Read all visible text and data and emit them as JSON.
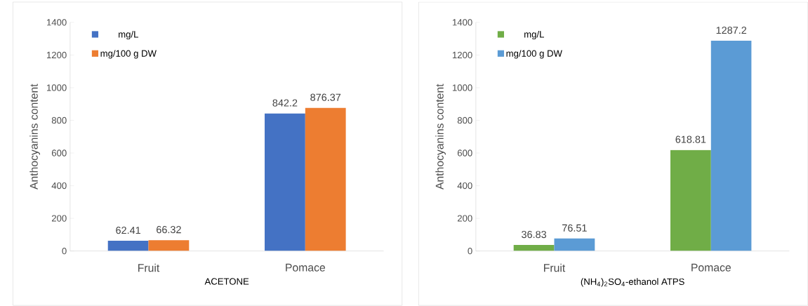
{
  "chart_data": [
    {
      "type": "bar",
      "categories": [
        "Fruit",
        "Pomace"
      ],
      "xlabel": "ACETONE",
      "ylabel": "Anthocyanins content",
      "series": [
        {
          "name": "mg/L",
          "color": "#4472c4",
          "values": [
            62.41,
            842.2
          ]
        },
        {
          "name": "mg/100 g DW",
          "color": "#ed7d31",
          "values": [
            66.32,
            876.37
          ]
        }
      ],
      "ylim": [
        0,
        1400
      ],
      "yticks": [
        0,
        200,
        400,
        600,
        800,
        1000,
        1200,
        1400
      ],
      "data_labels": true,
      "legend": "top left",
      "grid": false
    },
    {
      "type": "bar",
      "categories": [
        "Fruit",
        "Pomace"
      ],
      "xlabel": "(NH$_{4}$)$_{2}$SO$_{4}$-ethanol   ATPS",
      "ylabel": "Anthocyanins content",
      "series": [
        {
          "name": "mg/L",
          "color": "#70ad47",
          "values": [
            36.83,
            618.81
          ]
        },
        {
          "name": "mg/100 g DW",
          "color": "#5b9bd5",
          "values": [
            76.51,
            1287.2
          ]
        }
      ],
      "ylim": [
        0,
        1400
      ],
      "yticks": [
        0,
        200,
        400,
        600,
        800,
        1000,
        1200,
        1400
      ],
      "data_labels": true,
      "legend": "top left",
      "grid": false
    }
  ]
}
